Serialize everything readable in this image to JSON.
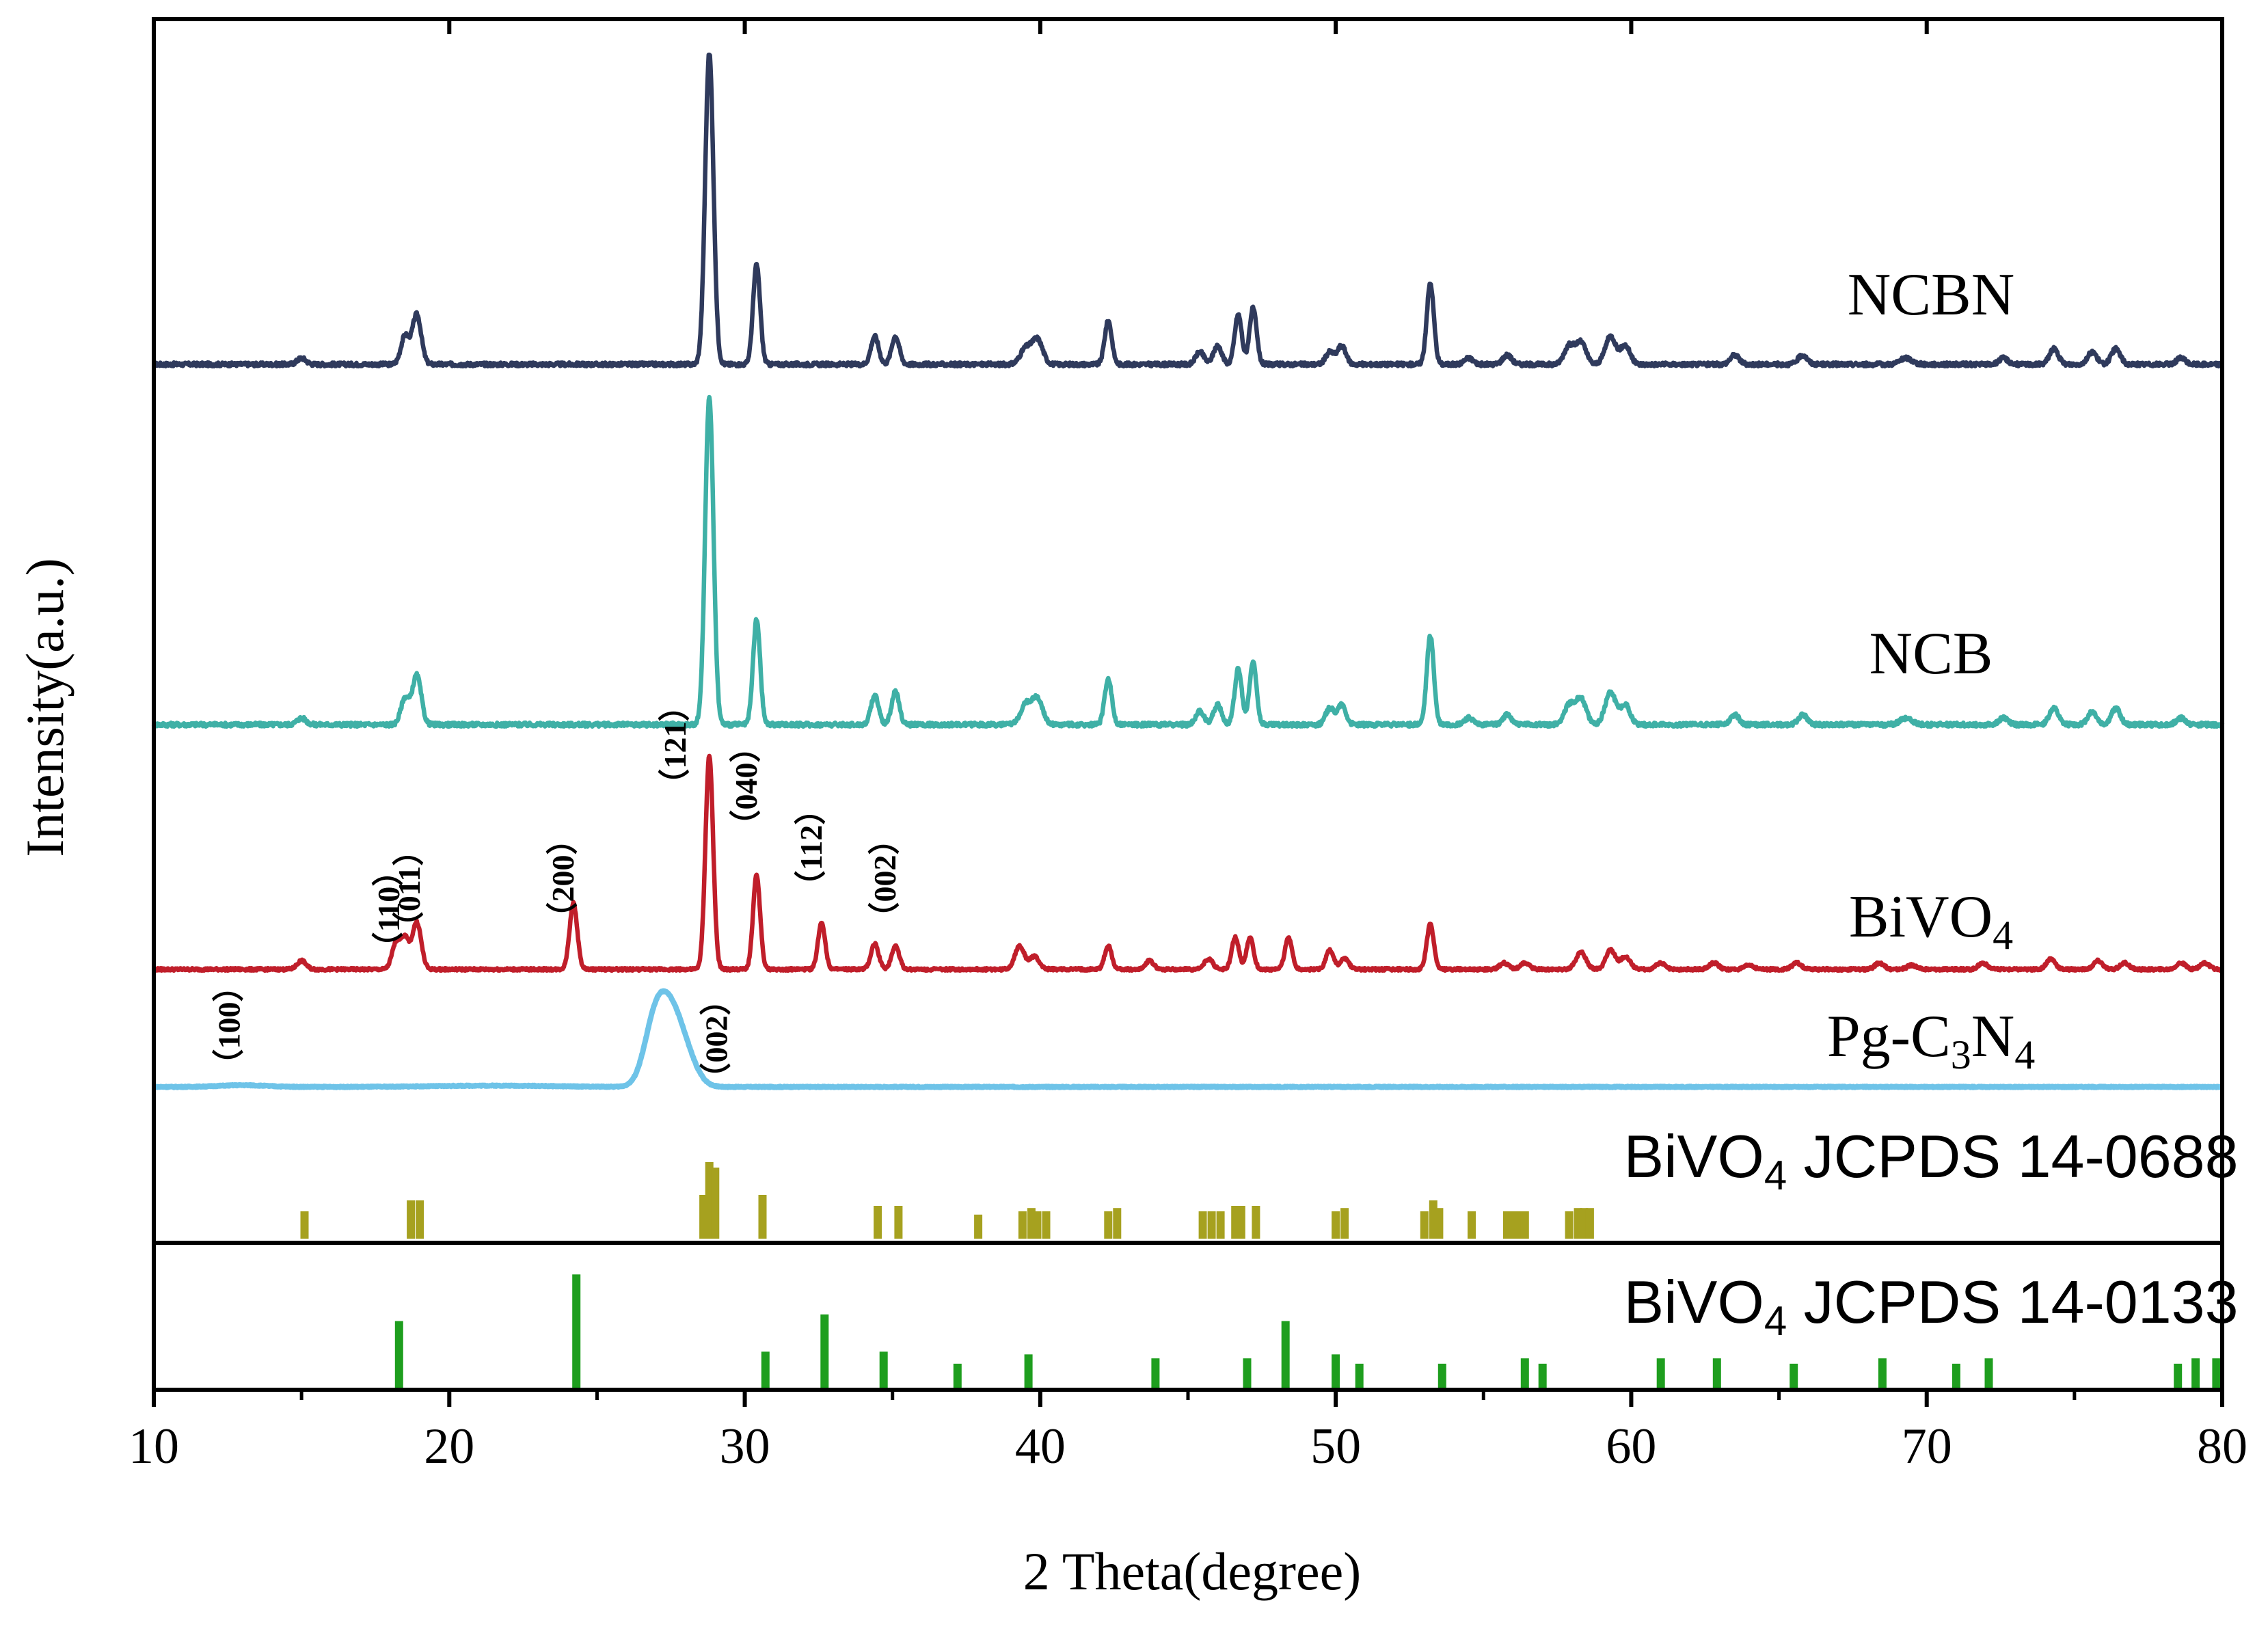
{
  "chart_data": {
    "type": "line",
    "title": "",
    "xlabel": "2 Theta(degree)",
    "ylabel": "Intensity(a.u.)",
    "xlim": [
      10,
      80
    ],
    "xticks": [
      "10",
      "20",
      "30",
      "40",
      "50",
      "60",
      "70",
      "80"
    ],
    "series": [
      {
        "name": "NCBN",
        "label_main": "NCBN",
        "label_sub": "",
        "label_tail": "",
        "label_sub2": "",
        "color": "#2f3a5c",
        "baseline": 0.0,
        "height": 1.0,
        "peaks": [
          [
            15.0,
            0.02,
            0.15
          ],
          [
            18.5,
            0.09,
            0.14
          ],
          [
            18.9,
            0.16,
            0.15
          ],
          [
            28.8,
            1.0,
            0.14
          ],
          [
            30.4,
            0.32,
            0.12
          ],
          [
            34.4,
            0.09,
            0.13
          ],
          [
            35.1,
            0.09,
            0.13
          ],
          [
            39.5,
            0.05,
            0.18
          ],
          [
            39.9,
            0.08,
            0.18
          ],
          [
            42.3,
            0.14,
            0.12
          ],
          [
            45.4,
            0.04,
            0.14
          ],
          [
            46.0,
            0.06,
            0.14
          ],
          [
            46.7,
            0.16,
            0.12
          ],
          [
            47.2,
            0.18,
            0.12
          ],
          [
            49.8,
            0.04,
            0.14
          ],
          [
            50.2,
            0.06,
            0.14
          ],
          [
            53.2,
            0.26,
            0.12
          ],
          [
            54.5,
            0.02,
            0.15
          ],
          [
            55.8,
            0.03,
            0.15
          ],
          [
            57.9,
            0.06,
            0.17
          ],
          [
            58.3,
            0.07,
            0.17
          ],
          [
            59.3,
            0.09,
            0.18
          ],
          [
            59.8,
            0.06,
            0.16
          ],
          [
            63.5,
            0.03,
            0.15
          ],
          [
            65.8,
            0.03,
            0.15
          ],
          [
            69.3,
            0.02,
            0.2
          ],
          [
            72.6,
            0.02,
            0.15
          ],
          [
            74.3,
            0.05,
            0.15
          ],
          [
            75.6,
            0.04,
            0.15
          ],
          [
            76.4,
            0.05,
            0.15
          ],
          [
            78.6,
            0.02,
            0.15
          ]
        ]
      },
      {
        "name": "NCB",
        "label_main": "NCB",
        "label_sub": "",
        "label_tail": "",
        "label_sub2": "",
        "color": "#3fb0a6",
        "baseline": 0.0,
        "height": 1.0,
        "peaks": [
          [
            15.0,
            0.02,
            0.15
          ],
          [
            18.5,
            0.08,
            0.14
          ],
          [
            18.9,
            0.15,
            0.15
          ],
          [
            28.8,
            1.0,
            0.14
          ],
          [
            30.4,
            0.32,
            0.12
          ],
          [
            34.4,
            0.09,
            0.13
          ],
          [
            35.1,
            0.1,
            0.13
          ],
          [
            39.5,
            0.06,
            0.18
          ],
          [
            39.9,
            0.08,
            0.18
          ],
          [
            42.3,
            0.14,
            0.12
          ],
          [
            45.4,
            0.04,
            0.14
          ],
          [
            46.0,
            0.06,
            0.14
          ],
          [
            46.7,
            0.17,
            0.12
          ],
          [
            47.2,
            0.19,
            0.12
          ],
          [
            49.8,
            0.05,
            0.14
          ],
          [
            50.2,
            0.06,
            0.14
          ],
          [
            53.2,
            0.27,
            0.12
          ],
          [
            54.5,
            0.02,
            0.15
          ],
          [
            55.8,
            0.03,
            0.15
          ],
          [
            57.9,
            0.06,
            0.17
          ],
          [
            58.3,
            0.08,
            0.17
          ],
          [
            59.3,
            0.1,
            0.18
          ],
          [
            59.8,
            0.06,
            0.16
          ],
          [
            63.5,
            0.03,
            0.15
          ],
          [
            65.8,
            0.03,
            0.15
          ],
          [
            69.3,
            0.02,
            0.2
          ],
          [
            72.6,
            0.02,
            0.15
          ],
          [
            74.3,
            0.05,
            0.15
          ],
          [
            75.6,
            0.04,
            0.15
          ],
          [
            76.4,
            0.05,
            0.15
          ],
          [
            78.6,
            0.02,
            0.15
          ]
        ]
      },
      {
        "name": "BiVO4",
        "label_main": "BiVO",
        "label_sub": "4",
        "label_tail": "",
        "label_sub2": "",
        "color": "#c01e2a",
        "baseline": 0.0,
        "height": 1.0,
        "peaks": [
          [
            15.0,
            0.04,
            0.15
          ],
          [
            18.2,
            0.12,
            0.14
          ],
          [
            18.5,
            0.14,
            0.14
          ],
          [
            18.9,
            0.22,
            0.15
          ],
          [
            24.2,
            0.31,
            0.13
          ],
          [
            28.8,
            1.0,
            0.13
          ],
          [
            30.4,
            0.44,
            0.12
          ],
          [
            32.6,
            0.22,
            0.12
          ],
          [
            34.4,
            0.12,
            0.13
          ],
          [
            35.1,
            0.11,
            0.13
          ],
          [
            39.3,
            0.11,
            0.16
          ],
          [
            39.8,
            0.06,
            0.16
          ],
          [
            42.3,
            0.11,
            0.12
          ],
          [
            43.7,
            0.04,
            0.14
          ],
          [
            45.7,
            0.05,
            0.14
          ],
          [
            46.6,
            0.15,
            0.12
          ],
          [
            47.1,
            0.15,
            0.12
          ],
          [
            48.4,
            0.15,
            0.12
          ],
          [
            49.8,
            0.09,
            0.13
          ],
          [
            50.3,
            0.05,
            0.14
          ],
          [
            53.2,
            0.21,
            0.12
          ],
          [
            55.7,
            0.03,
            0.15
          ],
          [
            56.4,
            0.03,
            0.15
          ],
          [
            58.3,
            0.08,
            0.17
          ],
          [
            59.3,
            0.09,
            0.16
          ],
          [
            59.8,
            0.06,
            0.16
          ],
          [
            61.0,
            0.03,
            0.15
          ],
          [
            62.8,
            0.03,
            0.15
          ],
          [
            64.0,
            0.02,
            0.15
          ],
          [
            65.6,
            0.03,
            0.15
          ],
          [
            68.4,
            0.03,
            0.15
          ],
          [
            69.5,
            0.02,
            0.15
          ],
          [
            71.9,
            0.03,
            0.15
          ],
          [
            74.2,
            0.05,
            0.15
          ],
          [
            75.8,
            0.04,
            0.15
          ],
          [
            76.7,
            0.03,
            0.15
          ],
          [
            78.6,
            0.03,
            0.15
          ],
          [
            79.4,
            0.03,
            0.15
          ]
        ]
      },
      {
        "name": "Pg-C3N4",
        "label_main": "Pg-C",
        "label_sub": "3",
        "label_tail": "N",
        "label_sub2": "4",
        "color": "#6ec3e8",
        "baseline": 0.0,
        "height": 1.0,
        "peaks": [
          [
            13.0,
            0.02,
            0.8
          ],
          [
            21.5,
            0.015,
            2.0
          ],
          [
            26.9,
            0.45,
            0.35
          ],
          [
            27.4,
            0.85,
            0.45
          ],
          [
            28.0,
            0.25,
            0.4
          ]
        ]
      }
    ],
    "annotations": [
      {
        "label": "（110）",
        "two_theta": 18.3
      },
      {
        "label": "（011）",
        "two_theta": 19.0
      },
      {
        "label": "（200）",
        "two_theta": 24.2
      },
      {
        "label": "（121）",
        "two_theta": 28.0
      },
      {
        "label": "（040）",
        "two_theta": 30.4
      },
      {
        "label": "（112）",
        "two_theta": 32.6
      },
      {
        "label": "（002）",
        "two_theta": 35.1
      },
      {
        "label": "（100）",
        "two_theta": 12.9
      },
      {
        "label": "（002）",
        "two_theta": 29.4
      }
    ],
    "reference_patterns": [
      {
        "name": "BiVO4 JCPDS 14-0688",
        "label_main": "BiVO",
        "label_sub": "4",
        "label_tail": " JCPDS 14-0688",
        "color": "#a6a11f",
        "lines": [
          [
            15.1,
            0.25
          ],
          [
            18.7,
            0.35
          ],
          [
            19.0,
            0.35
          ],
          [
            28.6,
            0.4
          ],
          [
            28.8,
            0.7
          ],
          [
            29.0,
            0.65
          ],
          [
            30.6,
            0.4
          ],
          [
            34.5,
            0.3
          ],
          [
            35.2,
            0.3
          ],
          [
            37.9,
            0.22
          ],
          [
            39.4,
            0.25
          ],
          [
            39.7,
            0.28
          ],
          [
            39.9,
            0.25
          ],
          [
            40.2,
            0.25
          ],
          [
            42.3,
            0.25
          ],
          [
            42.6,
            0.28
          ],
          [
            45.5,
            0.25
          ],
          [
            45.8,
            0.25
          ],
          [
            46.1,
            0.25
          ],
          [
            46.6,
            0.3
          ],
          [
            46.8,
            0.3
          ],
          [
            47.3,
            0.3
          ],
          [
            50.0,
            0.25
          ],
          [
            50.3,
            0.28
          ],
          [
            53.0,
            0.25
          ],
          [
            53.3,
            0.35
          ],
          [
            53.5,
            0.28
          ],
          [
            54.6,
            0.25
          ],
          [
            55.8,
            0.25
          ],
          [
            56.0,
            0.25
          ],
          [
            56.2,
            0.25
          ],
          [
            56.4,
            0.25
          ],
          [
            57.9,
            0.25
          ],
          [
            58.2,
            0.28
          ],
          [
            58.4,
            0.28
          ],
          [
            58.6,
            0.28
          ]
        ]
      },
      {
        "name": "BiVO4 JCPDS 14-0133",
        "label_main": "BiVO",
        "label_sub": "4",
        "label_tail": " JCPDS 14-0133",
        "color": "#1e9e1e",
        "lines": [
          [
            18.3,
            0.5
          ],
          [
            24.3,
            0.85
          ],
          [
            30.7,
            0.27
          ],
          [
            32.7,
            0.55
          ],
          [
            34.7,
            0.27
          ],
          [
            37.2,
            0.18
          ],
          [
            39.6,
            0.25
          ],
          [
            43.9,
            0.22
          ],
          [
            47.0,
            0.22
          ],
          [
            48.3,
            0.5
          ],
          [
            50.0,
            0.25
          ],
          [
            50.8,
            0.18
          ],
          [
            53.6,
            0.18
          ],
          [
            56.4,
            0.22
          ],
          [
            57.0,
            0.18
          ],
          [
            61.0,
            0.22
          ],
          [
            62.9,
            0.22
          ],
          [
            65.5,
            0.18
          ],
          [
            68.5,
            0.22
          ],
          [
            71.0,
            0.18
          ],
          [
            72.1,
            0.22
          ],
          [
            78.5,
            0.18
          ],
          [
            79.1,
            0.22
          ],
          [
            79.8,
            0.22
          ]
        ]
      }
    ]
  }
}
